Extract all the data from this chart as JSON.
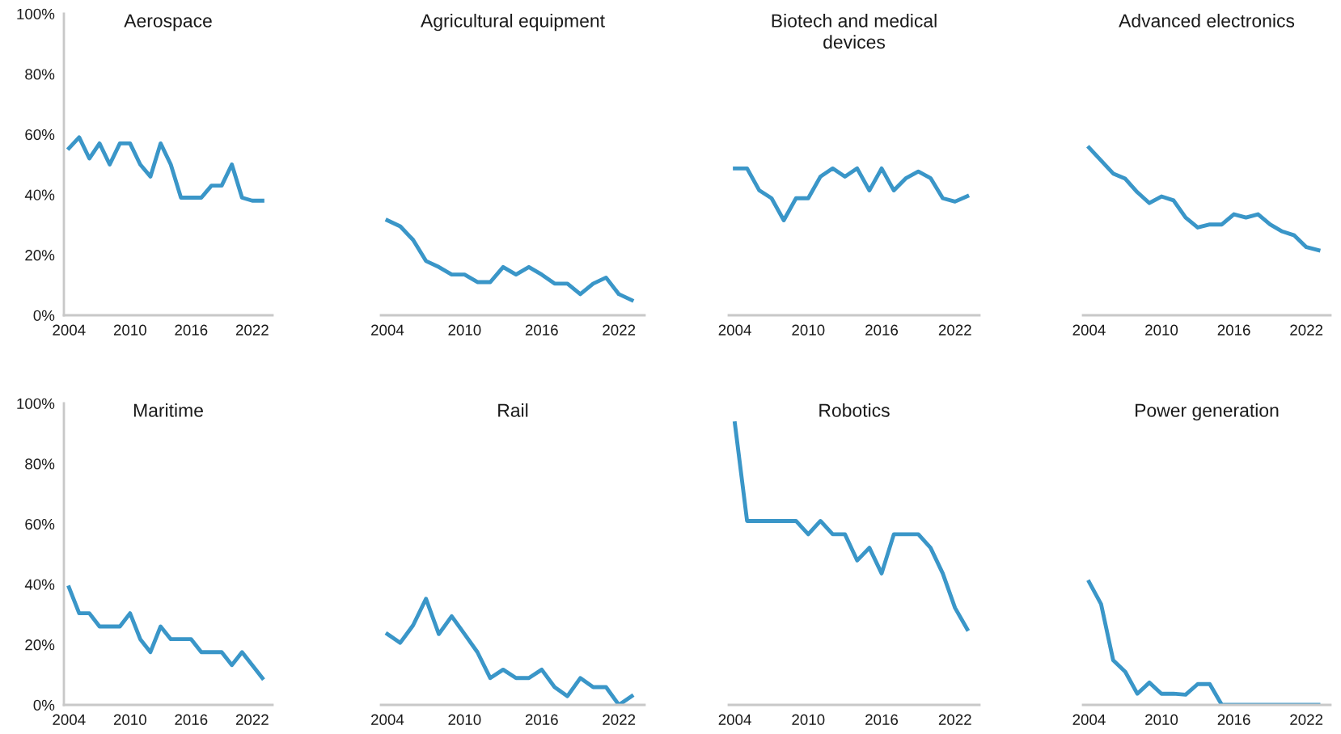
{
  "chart_data": [
    {
      "type": "line",
      "title": "Aerospace",
      "color": "#3a96c8",
      "x": [
        2004,
        2005,
        2006,
        2007,
        2008,
        2009,
        2010,
        2011,
        2012,
        2013,
        2014,
        2015,
        2016,
        2017,
        2018,
        2019,
        2020,
        2021,
        2022,
        2023
      ],
      "values": [
        55.4,
        59,
        52,
        57,
        50,
        57,
        57,
        50,
        46,
        57,
        50,
        39,
        39,
        39,
        43,
        43,
        50,
        39,
        38,
        38
      ],
      "xlim": [
        2003.5,
        2024
      ],
      "xticks": [
        2004,
        2010,
        2016,
        2022
      ],
      "ylim": [
        0,
        100
      ],
      "yticks": [
        {
          "value": 0,
          "label": "0%"
        },
        {
          "value": 20,
          "label": "20%"
        },
        {
          "value": 40,
          "label": "40%"
        },
        {
          "value": 60,
          "label": "60%"
        },
        {
          "value": 80,
          "label": "80%"
        },
        {
          "value": 100,
          "label": "100%"
        }
      ],
      "grid": false,
      "legend": false
    },
    {
      "type": "line",
      "title": "Agricultural equipment",
      "color": "#3a96c8",
      "x": [
        2004,
        2005,
        2006,
        2007,
        2008,
        2009,
        2010,
        2011,
        2012,
        2013,
        2014,
        2015,
        2016,
        2017,
        2018,
        2019,
        2020,
        2021,
        2022,
        2023
      ],
      "values": [
        31.5,
        29.5,
        25,
        18,
        16,
        13.5,
        13.5,
        11,
        11,
        16,
        13.5,
        16,
        13.5,
        10.5,
        10.5,
        7,
        10.5,
        12.5,
        7,
        5
      ],
      "xlim": [
        2003.5,
        2024
      ],
      "xticks": [
        2004,
        2010,
        2016,
        2022
      ],
      "ylim": [
        0,
        100
      ],
      "tick_labels": "x",
      "grid": false,
      "legend": false
    },
    {
      "type": "line",
      "title": "Biotech and medical\ndevices",
      "color": "#3a96c8",
      "x": [
        2004,
        2005,
        2006,
        2007,
        2008,
        2009,
        2010,
        2011,
        2012,
        2013,
        2014,
        2015,
        2016,
        2017,
        2018,
        2019,
        2020,
        2021,
        2022,
        2023
      ],
      "values": [
        48.7,
        48.7,
        41.4,
        38.8,
        31.5,
        38.8,
        38.8,
        46,
        48.7,
        46,
        48.7,
        41.4,
        48.7,
        41.4,
        45.5,
        47.7,
        45.5,
        38.8,
        37.7,
        39.5
      ],
      "xlim": [
        2003.5,
        2024
      ],
      "xticks": [
        2004,
        2010,
        2016,
        2022
      ],
      "ylim": [
        0,
        100
      ],
      "tick_labels": "x",
      "grid": false,
      "legend": false
    },
    {
      "type": "line",
      "title": "Advanced electronics",
      "color": "#3a96c8",
      "x": [
        2004,
        2005,
        2006,
        2007,
        2008,
        2009,
        2010,
        2011,
        2012,
        2013,
        2014,
        2015,
        2016,
        2017,
        2018,
        2019,
        2020,
        2021,
        2022,
        2023
      ],
      "values": [
        55.6,
        51.3,
        47,
        45.3,
        40.8,
        37.2,
        39.4,
        38.1,
        32.4,
        29.1,
        30.1,
        30.1,
        33.5,
        32.4,
        33.5,
        30.1,
        27.8,
        26.5,
        22.6,
        21.6
      ],
      "xlim": [
        2003.5,
        2024
      ],
      "xticks": [
        2004,
        2010,
        2016,
        2022
      ],
      "ylim": [
        0,
        100
      ],
      "tick_labels": "x",
      "grid": false,
      "legend": false
    },
    {
      "type": "line",
      "title": "Maritime",
      "color": "#3a96c8",
      "x": [
        2004,
        2005,
        2006,
        2007,
        2008,
        2009,
        2010,
        2011,
        2012,
        2013,
        2014,
        2015,
        2016,
        2017,
        2018,
        2019,
        2020,
        2021,
        2022,
        2023
      ],
      "values": [
        39,
        30.4,
        30.4,
        26,
        26,
        26,
        30.4,
        21.8,
        17.5,
        26,
        21.8,
        21.8,
        21.8,
        17.5,
        17.5,
        17.5,
        13.2,
        17.5,
        13.2,
        8.9
      ],
      "xlim": [
        2003.5,
        2024
      ],
      "xticks": [
        2004,
        2010,
        2016,
        2022
      ],
      "ylim": [
        0,
        100
      ],
      "yticks": [
        {
          "value": 0,
          "label": "0%"
        },
        {
          "value": 20,
          "label": "20%"
        },
        {
          "value": 40,
          "label": "40%"
        },
        {
          "value": 60,
          "label": "60%"
        },
        {
          "value": 80,
          "label": "80%"
        },
        {
          "value": 100,
          "label": "100%"
        }
      ],
      "grid": false,
      "legend": false
    },
    {
      "type": "line",
      "title": "Rail",
      "color": "#3a96c8",
      "x": [
        2004,
        2005,
        2006,
        2007,
        2008,
        2009,
        2010,
        2011,
        2012,
        2013,
        2014,
        2015,
        2016,
        2017,
        2018,
        2019,
        2020,
        2021,
        2022,
        2023
      ],
      "values": [
        23.5,
        20.6,
        26.4,
        35.2,
        23.5,
        29.4,
        23.5,
        17.5,
        8.9,
        11.7,
        8.9,
        8.9,
        11.7,
        5.9,
        2.9,
        8.9,
        5.9,
        5.9,
        0,
        2.9
      ],
      "xlim": [
        2003.5,
        2024
      ],
      "xticks": [
        2004,
        2010,
        2016,
        2022
      ],
      "ylim": [
        0,
        100
      ],
      "tick_labels": "x",
      "grid": false,
      "legend": false
    },
    {
      "type": "line",
      "title": "Robotics",
      "color": "#3a96c8",
      "x": [
        2004,
        2005,
        2006,
        2007,
        2008,
        2009,
        2010,
        2011,
        2012,
        2013,
        2014,
        2015,
        2016,
        2017,
        2018,
        2019,
        2020,
        2021,
        2022,
        2023
      ],
      "values": [
        93.4,
        61,
        61,
        61,
        61,
        61,
        56.6,
        61,
        56.6,
        56.6,
        47.9,
        52.1,
        43.6,
        56.6,
        56.6,
        56.6,
        52.1,
        43.6,
        32.2,
        25.1
      ],
      "xlim": [
        2003.5,
        2024
      ],
      "xticks": [
        2004,
        2010,
        2016,
        2022
      ],
      "ylim": [
        0,
        100
      ],
      "tick_labels": "x",
      "grid": false,
      "legend": false
    },
    {
      "type": "line",
      "title": "Power generation",
      "color": "#3a96c8",
      "x": [
        2004,
        2005,
        2006,
        2007,
        2008,
        2009,
        2010,
        2011,
        2012,
        2013,
        2014,
        2015,
        2016,
        2017,
        2018,
        2019,
        2020,
        2021,
        2022,
        2023
      ],
      "values": [
        40.8,
        33.4,
        14.8,
        11,
        3.7,
        7.4,
        3.7,
        3.7,
        3.4,
        6.9,
        6.9,
        0,
        0,
        0,
        0,
        0,
        0,
        0,
        0,
        0
      ],
      "xlim": [
        2003.5,
        2024
      ],
      "xticks": [
        2004,
        2010,
        2016,
        2022
      ],
      "ylim": [
        0,
        100
      ],
      "tick_labels": "x",
      "grid": false,
      "legend": false
    }
  ]
}
